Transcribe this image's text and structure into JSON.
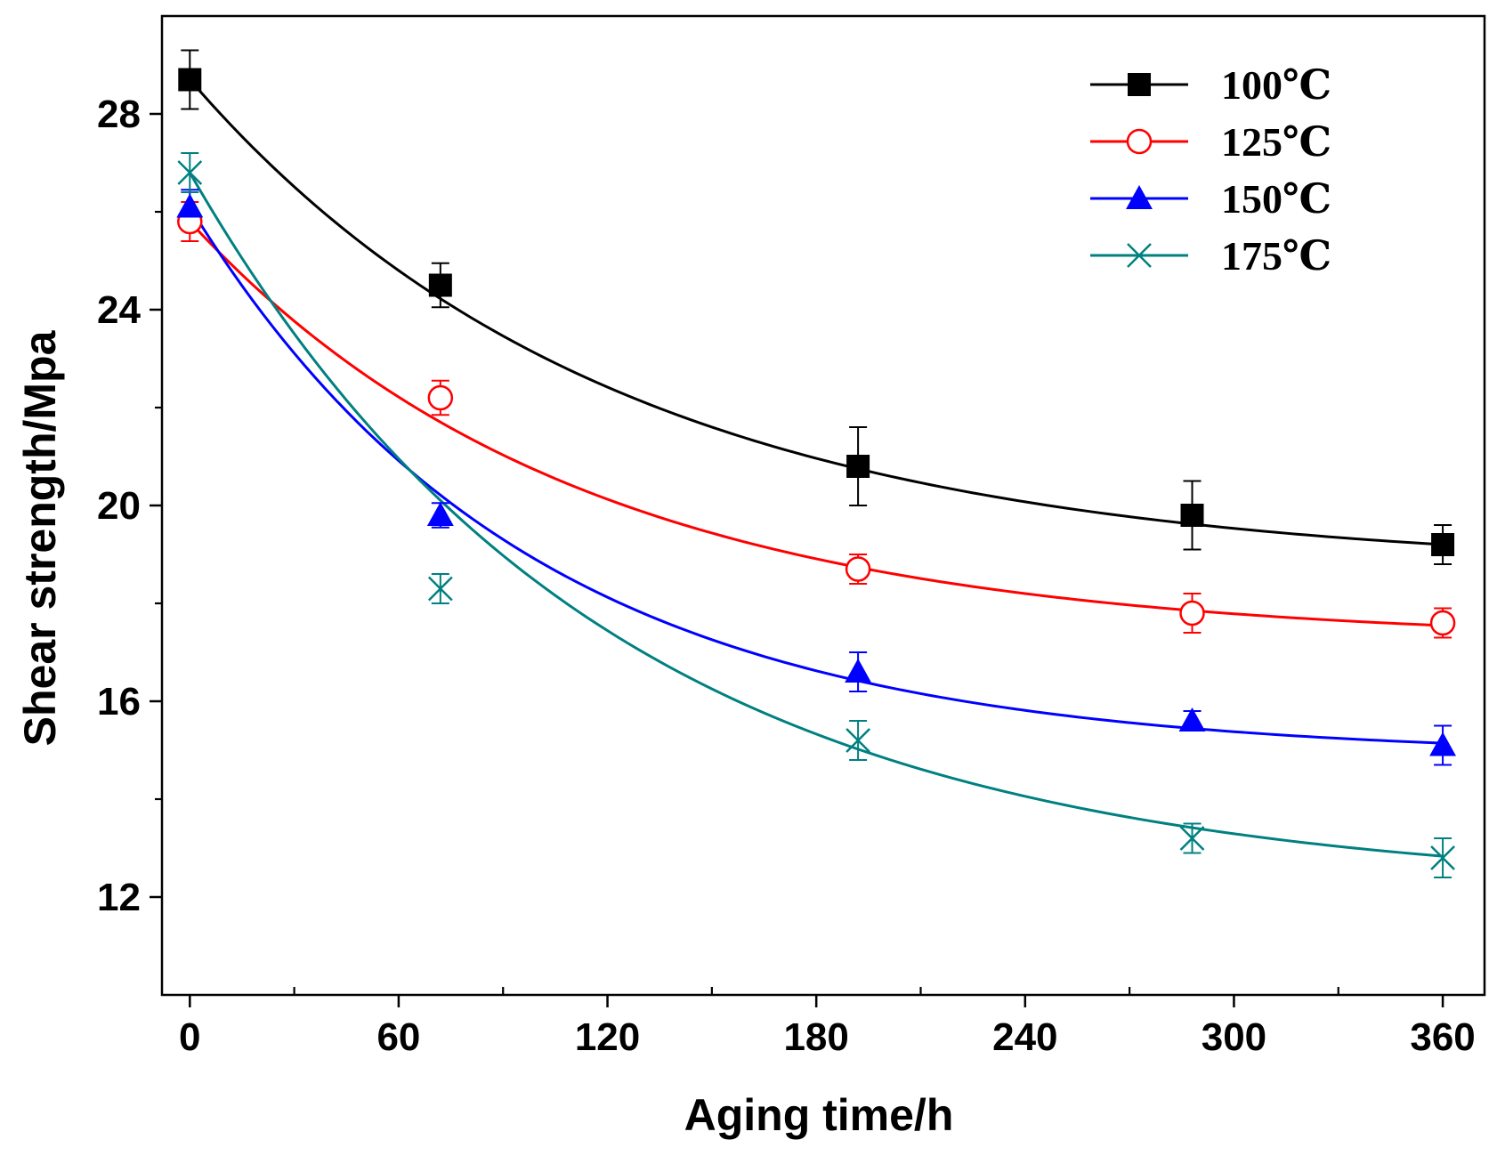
{
  "chart_data": {
    "type": "line",
    "xlabel": "Aging time/h",
    "ylabel": "Shear strength/Mpa",
    "xlim": [
      -8,
      372
    ],
    "ylim": [
      10,
      30
    ],
    "xticks": [
      0,
      60,
      120,
      180,
      240,
      300,
      360
    ],
    "xtick_labels": [
      "0",
      "60",
      "120",
      "180",
      "240",
      "300",
      "360"
    ],
    "xminor": [
      30,
      90,
      150,
      210,
      270,
      330
    ],
    "yticks": [
      12,
      16,
      20,
      24,
      28
    ],
    "ytick_labels": [
      "12",
      "16",
      "20",
      "24",
      "28"
    ],
    "yminor": [
      14,
      18,
      22,
      26
    ],
    "legend_position": "top-right",
    "series": [
      {
        "name": "100℃",
        "color": "#000000",
        "marker": "filled-square",
        "x": [
          0,
          72,
          192,
          288,
          360
        ],
        "y": [
          28.7,
          24.5,
          20.8,
          19.8,
          19.2
        ],
        "err": [
          0.6,
          0.45,
          0.8,
          0.7,
          0.4
        ],
        "fit": {
          "a": 18.68,
          "b": 10.02,
          "tau": 121.7
        }
      },
      {
        "name": "125℃",
        "color": "#ff0000",
        "marker": "open-circle",
        "x": [
          0,
          72,
          192,
          288,
          360
        ],
        "y": [
          25.8,
          22.2,
          18.7,
          17.8,
          17.6
        ],
        "err": [
          0.4,
          0.35,
          0.3,
          0.4,
          0.3
        ],
        "fit": {
          "a": 17.21,
          "b": 8.59,
          "tau": 111.1
        }
      },
      {
        "name": "150℃",
        "color": "#0000ff",
        "marker": "filled-triangle",
        "x": [
          0,
          72,
          192,
          288,
          360
        ],
        "y": [
          26.1,
          19.8,
          16.6,
          15.6,
          15.1
        ],
        "err": [
          0.35,
          0.25,
          0.4,
          0.2,
          0.4
        ],
        "fit": {
          "a": 14.87,
          "b": 11.23,
          "tau": 96.9
        }
      },
      {
        "name": "175℃",
        "color": "#008080",
        "marker": "x-cross",
        "x": [
          0,
          72,
          192,
          288,
          360
        ],
        "y": [
          26.8,
          18.3,
          15.2,
          13.2,
          12.8
        ],
        "err": [
          0.4,
          0.3,
          0.4,
          0.3,
          0.4
        ],
        "fit": {
          "a": 12.14,
          "b": 14.66,
          "tau": 118.0
        }
      }
    ]
  }
}
